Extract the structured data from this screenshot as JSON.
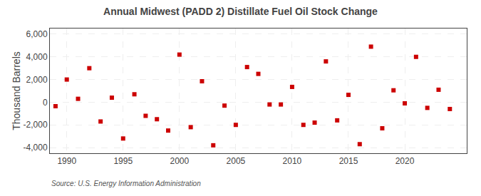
{
  "chart_data": {
    "type": "scatter",
    "title": "Annual Midwest (PADD 2) Distillate Fuel Oil Stock Change",
    "ylabel": "Thousand Barrels",
    "annotations": [
      "Source: U.S. Energy Information Administration"
    ],
    "color": "#cc0000",
    "marker": "square",
    "grid": true,
    "xlim": [
      1988.5,
      2025.5
    ],
    "ylim": [
      -4500,
      6500
    ],
    "xticks": [
      1990,
      1995,
      2000,
      2005,
      2010,
      2015,
      2020
    ],
    "yticks": [
      {
        "value": -4000,
        "label": "-4,000"
      },
      {
        "value": -2000,
        "label": "-2,000"
      },
      0,
      {
        "value": 2000,
        "label": "2,000"
      },
      {
        "value": 4000,
        "label": "4,000"
      },
      {
        "value": 6000,
        "label": "6,000"
      }
    ],
    "x": [
      1989,
      1990,
      1991,
      1992,
      1993,
      1994,
      1995,
      1996,
      1997,
      1998,
      1999,
      2000,
      2001,
      2002,
      2003,
      2004,
      2005,
      2006,
      2007,
      2008,
      2009,
      2010,
      2011,
      2012,
      2013,
      2014,
      2015,
      2016,
      2017,
      2018,
      2019,
      2020,
      2021,
      2022,
      2023,
      2024
    ],
    "values": [
      -350,
      2000,
      300,
      3000,
      -1700,
      400,
      -3200,
      700,
      -1200,
      -1500,
      -2500,
      4200,
      -2200,
      1850,
      -3800,
      -300,
      -2000,
      3100,
      2500,
      -200,
      -200,
      1350,
      -2000,
      -1800,
      3600,
      -1600,
      650,
      -3700,
      4900,
      -2300,
      1050,
      -100,
      4000,
      -500,
      1100,
      -600
    ]
  }
}
